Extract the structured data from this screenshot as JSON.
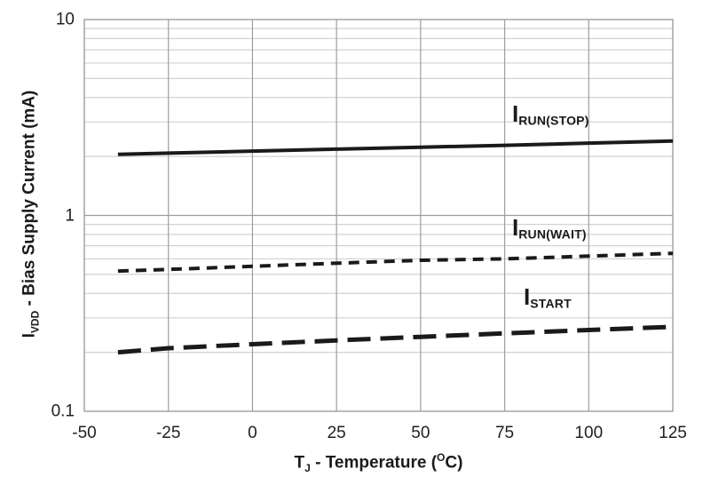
{
  "chart_data": {
    "type": "line",
    "title": "",
    "x": [
      -40,
      -25,
      0,
      25,
      50,
      75,
      100,
      125
    ],
    "series": [
      {
        "name": "I_RUN(STOP)",
        "label_main": "I",
        "label_sub": "RUN(STOP)",
        "line_style": "solid",
        "values": [
          2.05,
          2.08,
          2.13,
          2.18,
          2.23,
          2.28,
          2.34,
          2.4
        ]
      },
      {
        "name": "I_RUN(WAIT)",
        "label_main": "I",
        "label_sub": "RUN(WAIT)",
        "line_style": "short-dash",
        "values": [
          0.52,
          0.53,
          0.55,
          0.57,
          0.59,
          0.6,
          0.62,
          0.64
        ]
      },
      {
        "name": "I_START",
        "label_main": "I",
        "label_sub": "START",
        "line_style": "long-dash",
        "values": [
          0.2,
          0.21,
          0.22,
          0.23,
          0.24,
          0.25,
          0.26,
          0.27
        ]
      }
    ],
    "xlabel": {
      "main": "T",
      "sub": "J",
      "mid": " - Temperature (",
      "deg": "O",
      "end": "C)"
    },
    "ylabel": {
      "main": "I",
      "sub": "VDD",
      "rest": " - Bias Supply Current (mA)"
    },
    "x_ticks": [
      -50,
      -25,
      0,
      25,
      50,
      75,
      100,
      125
    ],
    "y_ticks": [
      "10",
      "1",
      "0.1"
    ],
    "xlim": [
      -50,
      125
    ],
    "ylim": [
      0.1,
      10
    ],
    "y_scale": "log",
    "grid": true,
    "legend_position": "inline-labels",
    "colors": {
      "line": "#1a1a1a",
      "grid_minor": "#d2d2d2",
      "grid_major": "#9e9e9e",
      "frame": "#9e9e9e",
      "background": "#ffffff",
      "text": "#1f1f1f"
    }
  }
}
